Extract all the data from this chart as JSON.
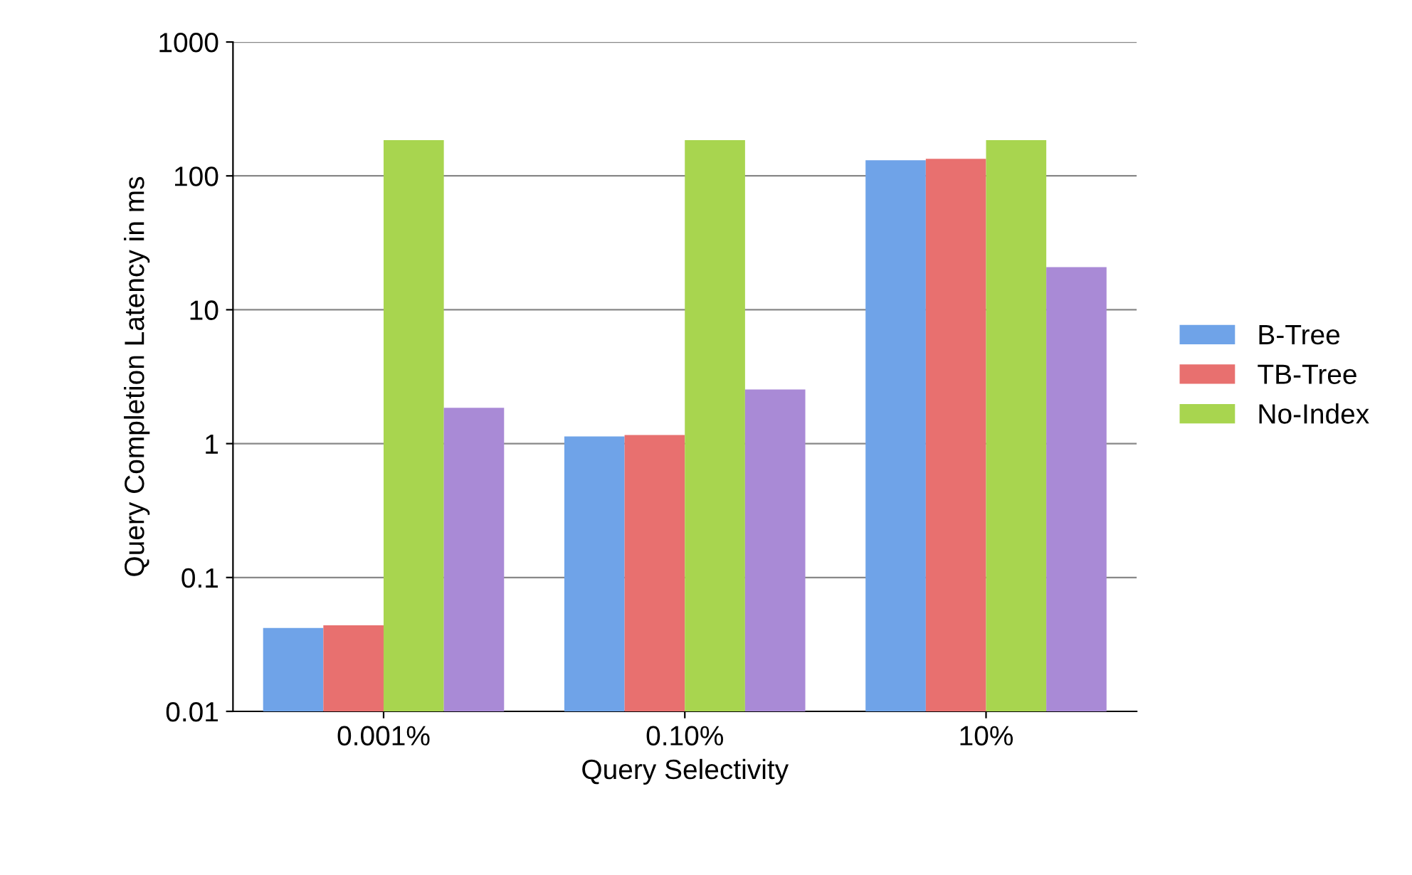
{
  "chart_data": {
    "type": "bar",
    "xlabel": "Query Selectivity",
    "ylabel": "Query Completion Latency in ms",
    "categories": [
      "0.001%",
      "0.10%",
      "10%"
    ],
    "series": [
      {
        "name": "B-Tree",
        "color": "#6fa3e8",
        "values": [
          0.042,
          1.13,
          131
        ]
      },
      {
        "name": "TB-Tree",
        "color": "#e8706f",
        "values": [
          0.044,
          1.16,
          134
        ]
      },
      {
        "name": "No-Index",
        "color": "#a8d54f",
        "values": [
          185,
          185,
          185
        ]
      },
      {
        "color": "#a98ad6",
        "values": [
          1.85,
          2.54,
          20.8
        ]
      }
    ],
    "log": "y",
    "ylim": [
      0.01,
      1000
    ],
    "yticks": [
      {
        "value": 0.01,
        "label": "0.01"
      },
      {
        "value": 0.1,
        "label": "0.1"
      },
      1,
      10,
      100,
      1000
    ],
    "grid": "y",
    "legend": "right"
  }
}
